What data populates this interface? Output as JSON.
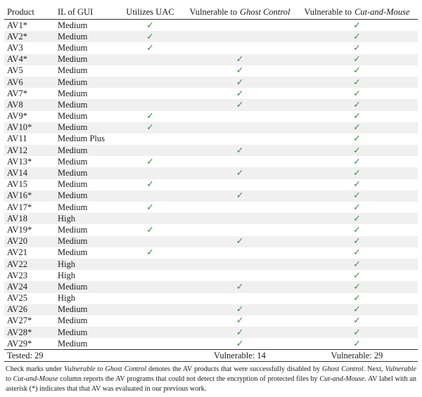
{
  "table": {
    "header": [
      [
        "Product"
      ],
      [
        "IL of GUI"
      ],
      [
        "Utilizes UAC"
      ],
      [
        "Vulnerable to",
        "Ghost Control"
      ],
      [
        "Vulnerable to",
        "Cut-and-Mouse"
      ]
    ],
    "rows": [
      [
        "AV1*",
        "Medium",
        "✓",
        null,
        "✓"
      ],
      [
        "AV2*",
        "Medium",
        "✓",
        null,
        "✓"
      ],
      [
        "AV3",
        "Medium",
        "✓",
        null,
        "✓"
      ],
      [
        "AV4*",
        "Medium",
        null,
        "✓",
        "✓"
      ],
      [
        "AV5",
        "Medium",
        null,
        "✓",
        "✓"
      ],
      [
        "AV6",
        "Medium",
        null,
        "✓",
        "✓"
      ],
      [
        "AV7*",
        "Medium",
        null,
        "✓",
        "✓"
      ],
      [
        "AV8",
        "Medium",
        null,
        "✓",
        "✓"
      ],
      [
        "AV9*",
        "Medium",
        "✓",
        null,
        "✓"
      ],
      [
        "AV10*",
        "Medium",
        "✓",
        null,
        "✓"
      ],
      [
        "AV11",
        "Medium Plus",
        null,
        null,
        "✓"
      ],
      [
        "AV12",
        "Medium",
        null,
        "✓",
        "✓"
      ],
      [
        "AV13*",
        "Medium",
        "✓",
        null,
        "✓"
      ],
      [
        "AV14",
        "Medium",
        null,
        "✓",
        "✓"
      ],
      [
        "AV15",
        "Medium",
        "✓",
        null,
        "✓"
      ],
      [
        "AV16*",
        "Medium",
        null,
        "✓",
        "✓"
      ],
      [
        "AV17*",
        "Medium",
        "✓",
        null,
        "✓"
      ],
      [
        "AV18",
        "High",
        null,
        null,
        "✓"
      ],
      [
        "AV19*",
        "Medium",
        "✓",
        null,
        "✓"
      ],
      [
        "AV20",
        "Medium",
        null,
        "✓",
        "✓"
      ],
      [
        "AV21",
        "Medium",
        "✓",
        null,
        "✓"
      ],
      [
        "AV22",
        "High",
        null,
        null,
        "✓"
      ],
      [
        "AV23",
        "High",
        null,
        null,
        "✓"
      ],
      [
        "AV24",
        "Medium",
        null,
        "✓",
        "✓"
      ],
      [
        "AV25",
        "High",
        null,
        null,
        "✓"
      ],
      [
        "AV26",
        "Medium",
        null,
        "✓",
        "✓"
      ],
      [
        "AV27*",
        "Medium",
        null,
        "✓",
        "✓"
      ],
      [
        "AV28*",
        "Medium",
        null,
        "✓",
        "✓"
      ],
      [
        "AV29*",
        "Medium",
        null,
        "✓",
        "✓"
      ]
    ],
    "footer": [
      "Tested: 29",
      "Vulnerable: 14",
      "Vulnerable: 29"
    ]
  },
  "caption": [
    "Check marks under ",
    "Vulnerable to Ghost Control",
    " denotes the AV products that were successfully disabled by ",
    "Ghost Control",
    ". Next, ",
    "Vulnerable to Cut-and-Mouse",
    " column reports the AV programs that could not detect the encryption of protected files by ",
    "Cut-and-Mouse",
    ". AV label with an asterisk (*) indicates that that AV was evaluated in our previous work."
  ]
}
